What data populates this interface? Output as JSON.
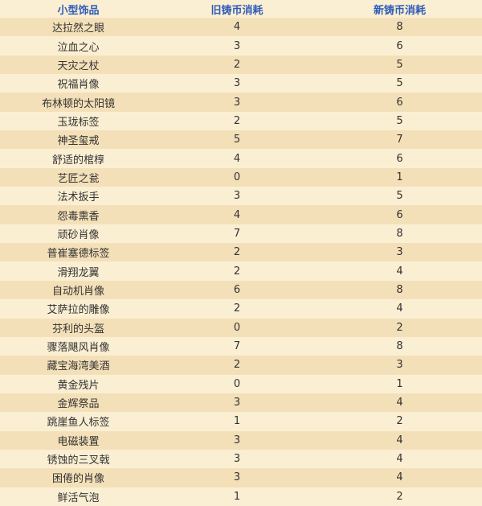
{
  "table": {
    "header": [
      "小型饰品",
      "旧铸币消耗",
      "新铸币消耗"
    ],
    "rows": [
      [
        "达拉然之眼",
        4,
        8
      ],
      [
        "泣血之心",
        3,
        6
      ],
      [
        "天灾之杖",
        2,
        5
      ],
      [
        "祝福肖像",
        3,
        5
      ],
      [
        "布林顿的太阳镜",
        3,
        6
      ],
      [
        "玉珑标签",
        2,
        5
      ],
      [
        "神圣玺戒",
        5,
        7
      ],
      [
        "舒适的棺椁",
        4,
        6
      ],
      [
        "艺匠之瓮",
        0,
        1
      ],
      [
        "法术扳手",
        3,
        5
      ],
      [
        "怨毒熏香",
        4,
        6
      ],
      [
        "顽砂肖像",
        7,
        8
      ],
      [
        "普崔塞德标签",
        2,
        3
      ],
      [
        "滑翔龙翼",
        2,
        4
      ],
      [
        "自动机肖像",
        6,
        8
      ],
      [
        "艾萨拉的雕像",
        2,
        4
      ],
      [
        "芬利的头盔",
        0,
        2
      ],
      [
        "骤落飓风肖像",
        7,
        8
      ],
      [
        "藏宝海湾美酒",
        2,
        3
      ],
      [
        "黄金残片",
        0,
        1
      ],
      [
        "金辉祭品",
        3,
        4
      ],
      [
        "跳崖鱼人标签",
        1,
        2
      ],
      [
        "电磁装置",
        3,
        4
      ],
      [
        "锈蚀的三叉戟",
        3,
        4
      ],
      [
        "困倦的肖像",
        3,
        4
      ],
      [
        "鲜活气泡",
        1,
        2
      ]
    ]
  }
}
